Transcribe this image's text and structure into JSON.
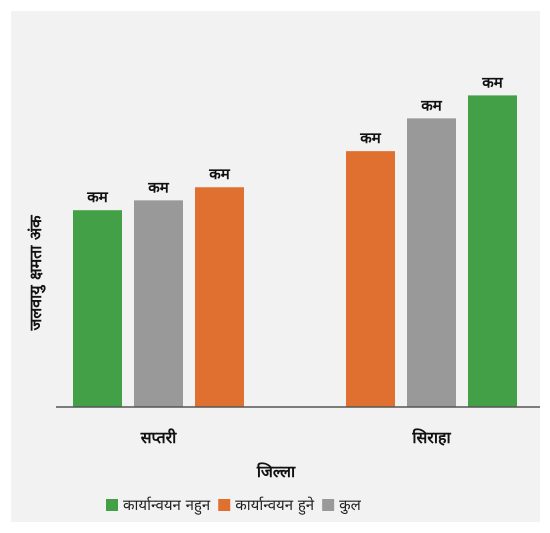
{
  "chart_data": {
    "type": "bar",
    "categories": [
      "सप्तरी",
      "सिराहा"
    ],
    "xlabel": "जिल्ला",
    "ylabel": "जलवायु क्षमता अंक",
    "ylim": [
      0,
      1.0
    ],
    "grid": false,
    "legend_position": "bottom",
    "groups": [
      {
        "category": "सप्तरी",
        "bars": [
          {
            "series": "कार्यान्वयन नहुन",
            "value": 0.6,
            "label": "कम",
            "color": "#43a047"
          },
          {
            "series": "कुल",
            "value": 0.63,
            "label": "कम",
            "color": "#999999"
          },
          {
            "series": "कार्यान्वयन हुने",
            "value": 0.67,
            "label": "कम",
            "color": "#e07030"
          }
        ]
      },
      {
        "category": "सिराहा",
        "bars": [
          {
            "series": "कार्यान्वयन हुने",
            "value": 0.78,
            "label": "कम",
            "color": "#e07030"
          },
          {
            "series": "कुल",
            "value": 0.88,
            "label": "कम",
            "color": "#999999"
          },
          {
            "series": "कार्यान्वयन नहुन",
            "value": 0.95,
            "label": "कम",
            "color": "#43a047"
          }
        ]
      }
    ],
    "legend": [
      {
        "name": "कार्यान्वयन नहुन",
        "color": "#43a047"
      },
      {
        "name": "कार्यान्वयन हुने",
        "color": "#e07030"
      },
      {
        "name": "कुल",
        "color": "#999999"
      }
    ]
  }
}
